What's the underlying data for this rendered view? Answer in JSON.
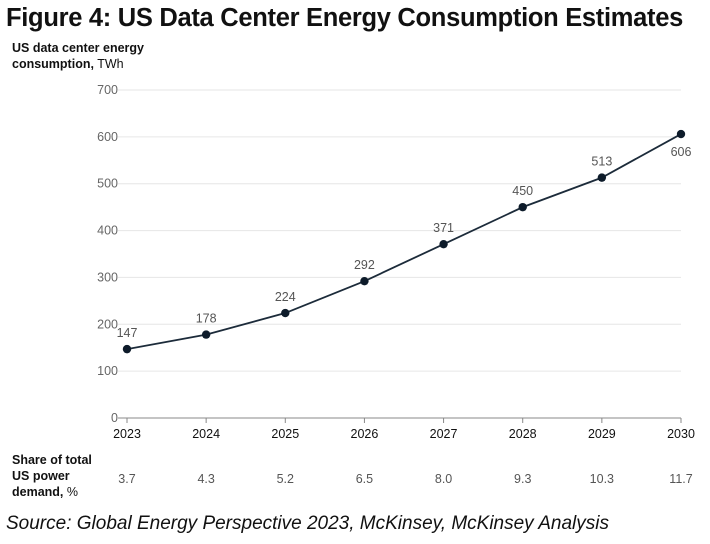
{
  "title": "Figure 4: US Data Center Energy Consumption Estimates",
  "ylabel_bold": "US data center energy",
  "ylabel_bold2": "consumption,",
  "ylabel_unit": "TWh",
  "share_label_line1": "Share of total",
  "share_label_line2": "US power",
  "share_label_line3": "demand,",
  "share_label_unit": "%",
  "source": "Source: Global Energy Perspective 2023, McKinsey, McKinsey Analysis",
  "colors": {
    "line": "#1c2b3a",
    "marker": "#0d1b2a",
    "grid": "#e6e6e6",
    "axis": "#888888"
  },
  "chart_data": {
    "type": "line",
    "categories": [
      "2023",
      "2024",
      "2025",
      "2026",
      "2027",
      "2028",
      "2029",
      "2030"
    ],
    "series": [
      {
        "values": [
          147,
          178,
          224,
          292,
          371,
          450,
          513,
          606
        ]
      }
    ],
    "data_labels": [
      "147",
      "178",
      "224",
      "292",
      "371",
      "450",
      "513",
      "606"
    ],
    "yticks": [
      "0",
      "100",
      "200",
      "300",
      "400",
      "500",
      "600",
      "700"
    ],
    "ylim": [
      0,
      700
    ],
    "grid": true,
    "share_of_total": [
      "3.7",
      "4.3",
      "5.2",
      "6.5",
      "8.0",
      "9.3",
      "10.3",
      "11.7"
    ]
  }
}
